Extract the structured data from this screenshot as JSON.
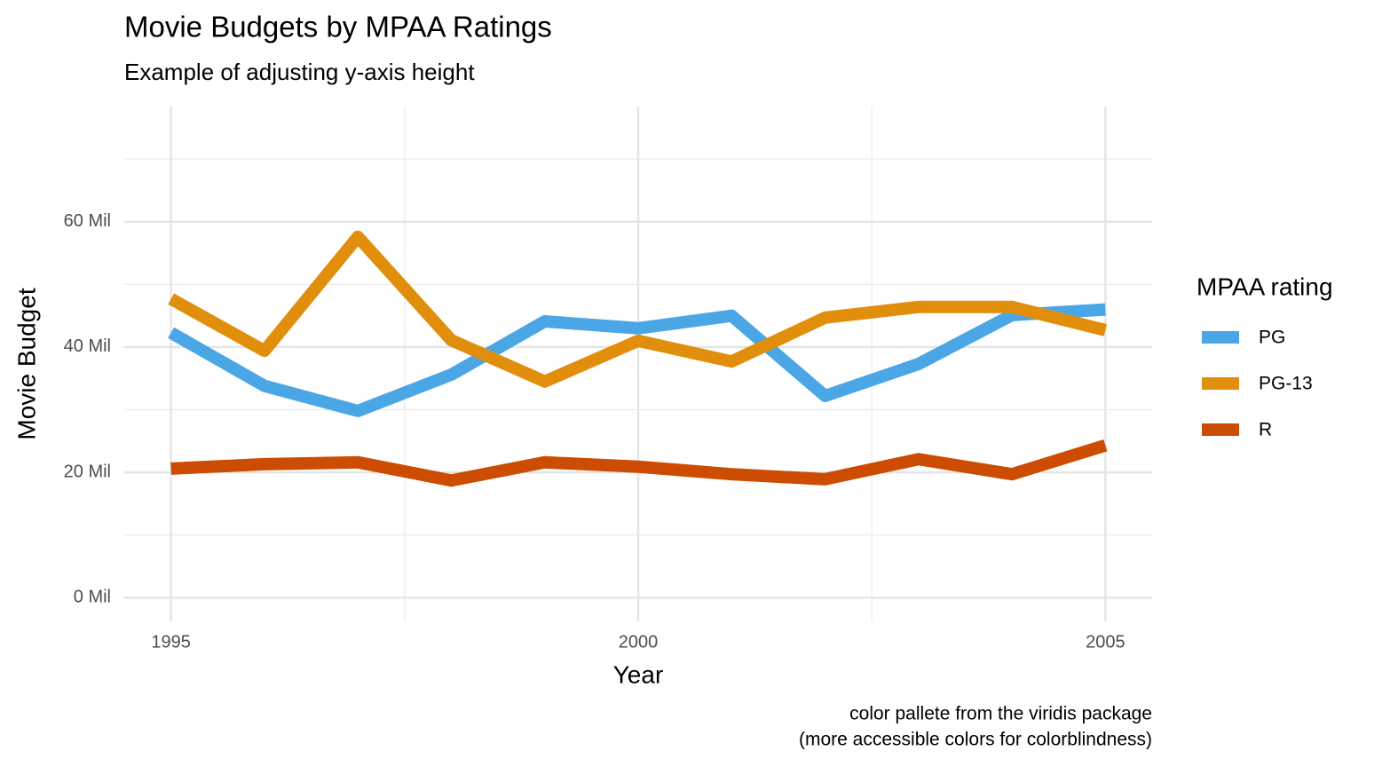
{
  "chart_data": {
    "type": "line",
    "title": "Movie Budgets by MPAA Ratings",
    "subtitle": "Example of adjusting y-axis height",
    "caption": [
      "color pallete from the viridis package",
      "(more accessible colors for colorblindness)"
    ],
    "x_label": "Year",
    "y_label": "Movie Budget",
    "legend_title": "MPAA rating",
    "legend": "right",
    "grid": true,
    "x": [
      1995,
      1996,
      1997,
      1998,
      1999,
      2000,
      2001,
      2002,
      2003,
      2004,
      2005
    ],
    "series": [
      {
        "name": "PG",
        "color": "#4ba6e5",
        "values": [
          42.3,
          33.8,
          29.8,
          35.6,
          44.1,
          43.0,
          45.0,
          32.2,
          37.3,
          45.1,
          46.0
        ]
      },
      {
        "name": "PG-13",
        "color": "#e08e0b",
        "values": [
          47.7,
          39.4,
          57.6,
          41.1,
          34.5,
          41.0,
          37.7,
          44.7,
          46.4,
          46.4,
          42.7
        ]
      },
      {
        "name": "R",
        "color": "#cc4c02",
        "values": [
          20.6,
          21.3,
          21.6,
          18.7,
          21.6,
          20.9,
          19.7,
          18.9,
          22.1,
          19.7,
          24.3
        ]
      }
    ],
    "xlim": [
      1994.5,
      2005.5
    ],
    "xticks": [
      1995,
      2000,
      2005
    ],
    "ylim": [
      -3.8,
      78.4
    ],
    "yticks": [
      {
        "value": 0,
        "label": "0 Mil"
      },
      {
        "value": 20,
        "label": "20 Mil"
      },
      {
        "value": 40,
        "label": "40 Mil"
      },
      {
        "value": 60,
        "label": "60 Mil"
      }
    ]
  }
}
